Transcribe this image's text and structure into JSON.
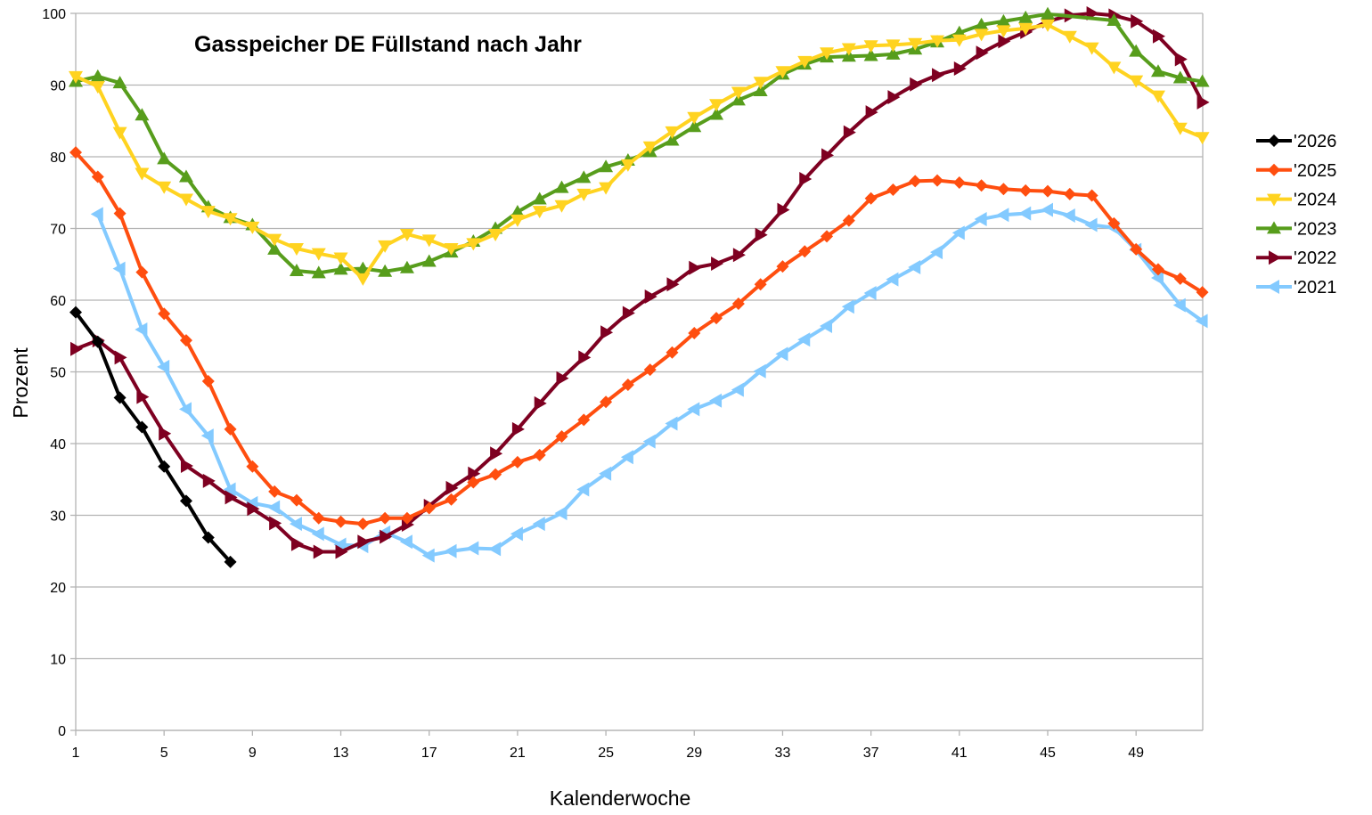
{
  "chart_data": {
    "type": "line",
    "title": "Gasspeicher DE Füllstand nach Jahr",
    "xlabel": "Kalenderwoche",
    "ylabel": "Prozent",
    "xlim": [
      1,
      52
    ],
    "ylim": [
      0,
      100
    ],
    "x_ticks": [
      1,
      5,
      9,
      13,
      17,
      21,
      25,
      29,
      33,
      37,
      41,
      45,
      49
    ],
    "y_ticks": [
      0,
      10,
      20,
      30,
      40,
      50,
      60,
      70,
      80,
      90,
      100
    ],
    "grid": "horizontal",
    "legend_position": "right",
    "series": [
      {
        "name": "'2026",
        "color": "#000000",
        "marker": "diamond",
        "x": [
          1,
          2,
          3,
          4,
          5,
          6,
          7,
          8
        ],
        "values": [
          58.3,
          54.2,
          46.4,
          42.3,
          36.8,
          32.0,
          26.9,
          23.5
        ]
      },
      {
        "name": "'2025",
        "color": "#ff4e0f",
        "marker": "diamond",
        "x": [
          1,
          2,
          3,
          4,
          5,
          6,
          7,
          8,
          9,
          10,
          11,
          12,
          13,
          14,
          15,
          16,
          17,
          18,
          19,
          20,
          21,
          22,
          23,
          24,
          25,
          26,
          27,
          28,
          29,
          30,
          31,
          32,
          33,
          34,
          35,
          36,
          37,
          38,
          39,
          40,
          41,
          42,
          43,
          44,
          45,
          46,
          47,
          48,
          49,
          50,
          51,
          52
        ],
        "values": [
          80.6,
          77.2,
          72.1,
          63.9,
          58.1,
          54.4,
          48.7,
          42.0,
          36.8,
          33.3,
          32.1,
          29.6,
          29.1,
          28.8,
          29.6,
          29.6,
          31.0,
          32.2,
          34.6,
          35.7,
          37.4,
          38.4,
          41.0,
          43.3,
          45.8,
          48.2,
          50.3,
          52.7,
          55.4,
          57.5,
          59.5,
          62.2,
          64.7,
          66.8,
          68.9,
          71.1,
          74.2,
          75.4,
          76.6,
          76.7,
          76.4,
          76.0,
          75.5,
          75.3,
          75.2,
          74.8,
          74.6,
          70.7,
          67.1,
          64.3,
          63.0,
          61.1
        ]
      },
      {
        "name": "'2024",
        "color": "#ffd320",
        "marker": "triangle-down",
        "x": [
          1,
          2,
          3,
          4,
          5,
          6,
          7,
          8,
          9,
          10,
          11,
          12,
          13,
          14,
          15,
          16,
          17,
          18,
          19,
          20,
          21,
          22,
          23,
          24,
          25,
          26,
          27,
          28,
          29,
          30,
          31,
          32,
          33,
          34,
          35,
          36,
          37,
          38,
          39,
          40,
          41,
          42,
          43,
          44,
          45,
          46,
          47,
          48,
          49,
          50,
          51,
          52
        ],
        "values": [
          91.2,
          89.8,
          83.4,
          77.7,
          75.8,
          74.1,
          72.4,
          71.4,
          70.2,
          68.5,
          67.2,
          66.5,
          65.9,
          63.0,
          67.6,
          69.2,
          68.4,
          67.2,
          67.9,
          69.2,
          71.2,
          72.4,
          73.2,
          74.8,
          75.7,
          78.9,
          81.4,
          83.5,
          85.5,
          87.3,
          89.0,
          90.4,
          91.9,
          93.3,
          94.5,
          95.1,
          95.5,
          95.6,
          95.8,
          96.2,
          96.3,
          97.1,
          97.6,
          97.9,
          98.4,
          96.8,
          95.2,
          92.5,
          90.6,
          88.5,
          84.0,
          82.7
        ]
      },
      {
        "name": "'2023",
        "color": "#579d1c",
        "marker": "triangle-up",
        "x": [
          1,
          2,
          3,
          4,
          5,
          6,
          7,
          8,
          9,
          10,
          11,
          12,
          13,
          14,
          15,
          16,
          17,
          18,
          19,
          20,
          21,
          22,
          23,
          24,
          25,
          26,
          27,
          28,
          29,
          30,
          31,
          32,
          33,
          34,
          35,
          36,
          37,
          38,
          39,
          40,
          41,
          42,
          43,
          44,
          45,
          48,
          49,
          50,
          51,
          52
        ],
        "values": [
          90.5,
          91.2,
          90.3,
          85.8,
          79.7,
          77.2,
          73.0,
          71.5,
          70.5,
          67.1,
          64.1,
          63.8,
          64.3,
          64.4,
          64.0,
          64.5,
          65.4,
          66.7,
          68.2,
          70.0,
          72.3,
          74.1,
          75.7,
          77.1,
          78.6,
          79.5,
          80.7,
          82.3,
          84.2,
          85.9,
          87.9,
          89.2,
          91.5,
          92.9,
          93.9,
          94.0,
          94.1,
          94.3,
          95.0,
          96.0,
          97.3,
          98.4,
          98.9,
          99.4,
          99.9,
          99.0,
          94.7,
          91.9,
          91.0,
          90.5
        ]
      },
      {
        "name": "'2022",
        "color": "#7e0021",
        "marker": "triangle-right",
        "x": [
          1,
          2,
          3,
          4,
          5,
          6,
          7,
          8,
          9,
          10,
          11,
          12,
          13,
          14,
          15,
          16,
          17,
          18,
          19,
          20,
          21,
          22,
          23,
          24,
          25,
          26,
          27,
          28,
          29,
          30,
          31,
          32,
          33,
          34,
          35,
          36,
          37,
          38,
          39,
          40,
          41,
          42,
          43,
          44,
          45,
          46,
          47,
          48,
          49,
          50,
          51,
          52
        ],
        "values": [
          53.2,
          54.4,
          52.0,
          46.5,
          41.4,
          36.9,
          34.8,
          32.5,
          30.9,
          28.9,
          26.0,
          24.9,
          24.9,
          26.3,
          27.0,
          28.7,
          31.3,
          33.8,
          35.8,
          38.6,
          42.0,
          45.6,
          49.1,
          52.0,
          55.5,
          58.2,
          60.5,
          62.2,
          64.5,
          65.1,
          66.3,
          69.1,
          72.6,
          76.9,
          80.2,
          83.4,
          86.2,
          88.3,
          90.1,
          91.4,
          92.3,
          94.5,
          96.1,
          97.4,
          98.9,
          99.7,
          100.0,
          99.7,
          98.9,
          96.8,
          93.6,
          87.6
        ]
      },
      {
        "name": "'2021",
        "color": "#83caff",
        "marker": "triangle-left",
        "x": [
          2,
          3,
          4,
          5,
          6,
          7,
          8,
          9,
          10,
          11,
          12,
          13,
          14,
          15,
          16,
          17,
          18,
          19,
          20,
          21,
          22,
          23,
          24,
          25,
          26,
          27,
          28,
          29,
          30,
          31,
          32,
          33,
          34,
          35,
          36,
          37,
          38,
          39,
          40,
          41,
          42,
          43,
          44,
          45,
          46,
          47,
          48,
          49,
          50,
          51,
          52
        ],
        "values": [
          72.0,
          64.4,
          55.9,
          50.7,
          44.8,
          41.1,
          33.6,
          31.7,
          31.1,
          28.8,
          27.4,
          25.9,
          25.7,
          27.6,
          26.3,
          24.4,
          25.0,
          25.4,
          25.3,
          27.4,
          28.8,
          30.3,
          33.6,
          35.8,
          38.1,
          40.3,
          42.8,
          44.8,
          46.0,
          47.5,
          50.1,
          52.5,
          54.5,
          56.4,
          59.1,
          61.0,
          62.9,
          64.6,
          66.7,
          69.4,
          71.3,
          71.9,
          72.1,
          72.6,
          71.8,
          70.5,
          70.1,
          67.0,
          63.1,
          59.3,
          57.1
        ]
      }
    ]
  }
}
